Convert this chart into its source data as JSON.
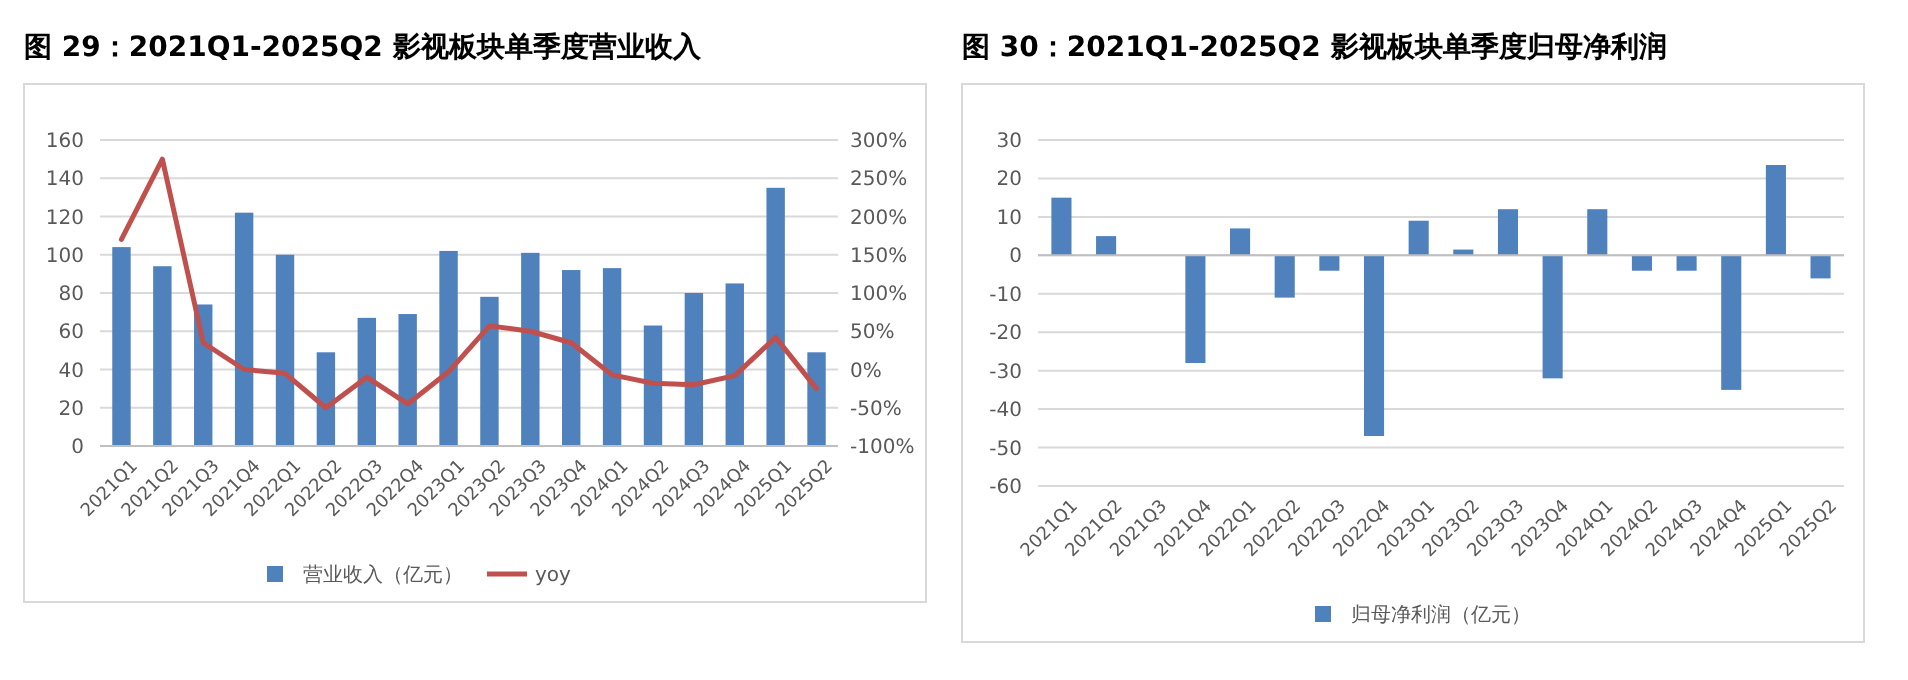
{
  "chart_data": [
    {
      "type": "bar",
      "title": "图 29：2021Q1-2025Q2 影视板块单季度营业收入",
      "categories": [
        "2021Q1",
        "2021Q2",
        "2021Q3",
        "2021Q4",
        "2022Q1",
        "2022Q2",
        "2022Q3",
        "2022Q4",
        "2023Q1",
        "2023Q2",
        "2023Q3",
        "2023Q4",
        "2024Q1",
        "2024Q2",
        "2024Q3",
        "2024Q4",
        "2025Q1",
        "2025Q2"
      ],
      "series": [
        {
          "name": "营业收入（亿元）",
          "color": "#4f81bd",
          "values": [
            104,
            94,
            74,
            122,
            100,
            49,
            67,
            69,
            102,
            78,
            101,
            92,
            93,
            63,
            80,
            85,
            135,
            49
          ]
        },
        {
          "name": "yoy",
          "type": "line",
          "axis": "y2",
          "color": "#c0504d",
          "values": [
            170,
            275,
            35,
            0,
            -5,
            -50,
            -10,
            -45,
            -3,
            57,
            50,
            35,
            -7,
            -18,
            -20,
            -8,
            42,
            -25
          ]
        }
      ],
      "ylim": [
        0,
        160
      ],
      "yticks": [
        0,
        20,
        40,
        60,
        80,
        100,
        120,
        140,
        160
      ],
      "y2lim": [
        -100,
        300
      ],
      "y2ticks": [
        {
          "value": -100,
          "label": "-100%"
        },
        {
          "value": -50,
          "label": "-50%"
        },
        {
          "value": 0,
          "label": "0%"
        },
        {
          "value": 50,
          "label": "50%"
        },
        {
          "value": 100,
          "label": "100%"
        },
        {
          "value": 150,
          "label": "150%"
        },
        {
          "value": 200,
          "label": "200%"
        },
        {
          "value": 250,
          "label": "250%"
        },
        {
          "value": 300,
          "label": "300%"
        }
      ],
      "grid": "y",
      "legend": "bottom",
      "marker": "none",
      "line_style": "solid"
    },
    {
      "type": "bar",
      "title": "图 30：2021Q1-2025Q2 影视板块单季度归母净利润",
      "categories": [
        "2021Q1",
        "2021Q2",
        "2021Q3",
        "2021Q4",
        "2022Q1",
        "2022Q2",
        "2022Q3",
        "2022Q4",
        "2023Q1",
        "2023Q2",
        "2023Q3",
        "2023Q4",
        "2024Q1",
        "2024Q2",
        "2024Q3",
        "2024Q4",
        "2025Q1",
        "2025Q2"
      ],
      "series": [
        {
          "name": "归母净利润（亿元）",
          "color": "#4f81bd",
          "values": [
            15,
            5,
            0,
            -28,
            7,
            -11,
            -4,
            -47,
            9,
            1.5,
            12,
            -32,
            12,
            -4,
            -4,
            -35,
            23.5,
            -6
          ]
        }
      ],
      "ylim": [
        -60,
        30
      ],
      "yticks": [
        -60,
        -50,
        -40,
        -30,
        -20,
        -10,
        0,
        10,
        20,
        30
      ],
      "grid": "y",
      "legend": "bottom"
    }
  ]
}
